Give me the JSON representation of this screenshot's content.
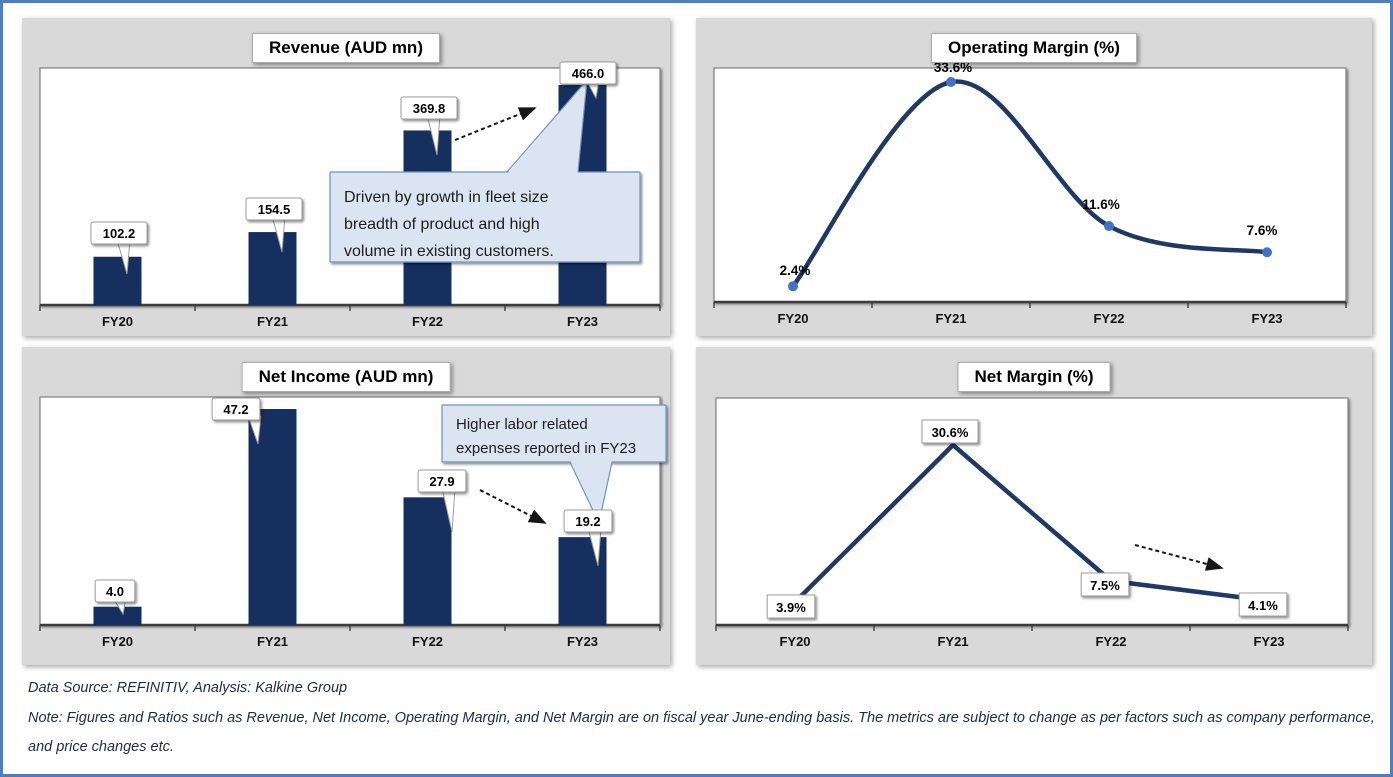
{
  "page": {
    "border_color": "#4f7dbe",
    "background": "#ffffff"
  },
  "colors": {
    "bar": "#152f5e",
    "line": "#1f3864",
    "marker": "#4472c4",
    "panel_bg": "#d9d9d9",
    "plot_bg": "#ffffff",
    "callout_bg": "#dbe5f1",
    "callout_border": "#7092be",
    "label_box_border": "#9d9d9d",
    "axis": "#3c3c3c",
    "arrow": "#161616"
  },
  "footer": {
    "source_line": "Data Source: REFINITIV, Analysis: Kalkine Group",
    "note_line": "Note: Figures and Ratios such as Revenue, Net Income, Operating Margin, and Net Margin are on fiscal year June-ending basis. The metrics are subject to change as per factors such as company performance, and price changes etc."
  },
  "chart_data": [
    {
      "type": "bar",
      "title": "Revenue (AUD mn)",
      "categories": [
        "FY20",
        "FY21",
        "FY22",
        "FY23"
      ],
      "values": [
        102.2,
        154.5,
        369.8,
        466.0
      ],
      "value_labels": [
        "102.2",
        "154.5",
        "369.8",
        "466.0"
      ],
      "xlabel": "",
      "ylabel": "",
      "ylim": [
        0,
        500
      ],
      "grid": false,
      "callout": {
        "lines": [
          "Driven by growth in fleet size",
          "breadth of product and high",
          "volume in existing customers."
        ]
      },
      "annotations": [
        "dashed arrow pointing up-right toward FY23 bar"
      ]
    },
    {
      "type": "line",
      "title": "Operating Margin (%)",
      "categories": [
        "FY20",
        "FY21",
        "FY22",
        "FY23"
      ],
      "values": [
        2.4,
        33.6,
        11.6,
        7.6
      ],
      "value_labels": [
        "2.4%",
        "33.6%",
        "11.6%",
        "7.6%"
      ],
      "xlabel": "",
      "ylabel": "",
      "ylim": [
        0,
        35
      ],
      "grid": false,
      "markers": true,
      "smooth": true,
      "fy21_label_clipped": true
    },
    {
      "type": "bar",
      "title": "Net Income (AUD mn)",
      "categories": [
        "FY20",
        "FY21",
        "FY22",
        "FY23"
      ],
      "values": [
        4.0,
        47.2,
        27.9,
        19.2
      ],
      "value_labels": [
        "4.0",
        "47.2",
        "27.9",
        "19.2"
      ],
      "xlabel": "",
      "ylabel": "",
      "ylim": [
        0,
        50
      ],
      "grid": false,
      "callout": {
        "lines": [
          "Higher labor related",
          "expenses reported in FY23"
        ]
      },
      "annotations": [
        "dashed arrow pointing down-right from FY22 toward FY23 bar"
      ]
    },
    {
      "type": "line",
      "title": "Net Margin (%)",
      "categories": [
        "FY20",
        "FY21",
        "FY22",
        "FY23"
      ],
      "values": [
        3.9,
        30.6,
        7.5,
        4.1
      ],
      "value_labels": [
        "3.9%",
        "30.6%",
        "7.5%",
        "4.1%"
      ],
      "xlabel": "",
      "ylabel": "",
      "ylim": [
        0,
        33
      ],
      "grid": false,
      "markers": false,
      "smooth": false,
      "annotations": [
        "dashed arrow pointing down-right between FY22 and FY23"
      ]
    }
  ]
}
